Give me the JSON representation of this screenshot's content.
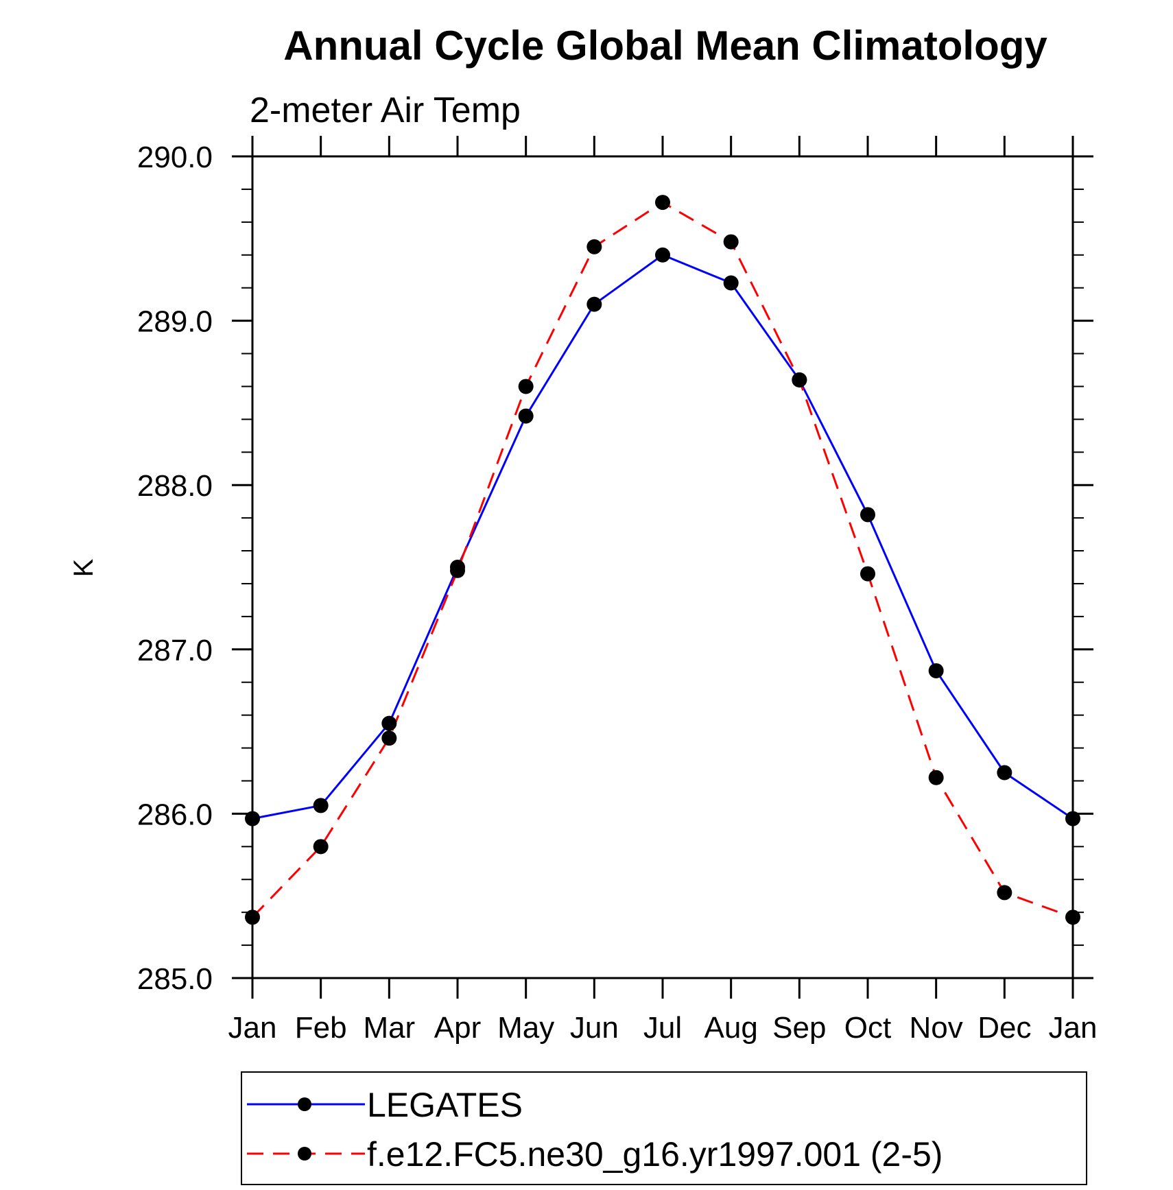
{
  "chart_data": {
    "type": "line",
    "title": "Annual Cycle Global Mean Climatology",
    "subtitle": "2-meter Air Temp",
    "xlabel": "",
    "ylabel": "K",
    "categories": [
      "Jan",
      "Feb",
      "Mar",
      "Apr",
      "May",
      "Jun",
      "Jul",
      "Aug",
      "Sep",
      "Oct",
      "Nov",
      "Dec",
      "Jan"
    ],
    "ylim": [
      285.0,
      290.0
    ],
    "yticks": [
      "285.0",
      "286.0",
      "287.0",
      "288.0",
      "289.0",
      "290.0"
    ],
    "grid": false,
    "legend_position": "bottom",
    "series": [
      {
        "name": "LEGATES",
        "color": "#0000ff",
        "line_style": "solid",
        "marker": "filled-circle",
        "values": [
          285.97,
          286.05,
          286.55,
          287.5,
          288.42,
          289.1,
          289.4,
          289.23,
          288.64,
          287.82,
          286.87,
          286.25,
          285.97
        ]
      },
      {
        "name": "f.e12.FC5.ne30_g16.yr1997.001 (2-5)",
        "color": "#ff0000",
        "line_style": "dashed",
        "marker": "filled-circle",
        "values": [
          285.37,
          285.8,
          286.46,
          287.48,
          288.6,
          289.45,
          289.72,
          289.48,
          288.64,
          287.46,
          286.22,
          285.52,
          285.37
        ]
      }
    ]
  }
}
